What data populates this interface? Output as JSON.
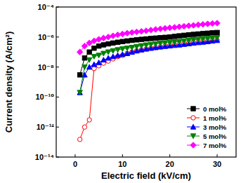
{
  "chart_data": {
    "type": "line",
    "x_label": "Electric field (kV/cm)",
    "y_label": "Current density (A/cm²)",
    "log": "y",
    "grid": false,
    "legend": "lower right",
    "xlim": [
      -4,
      34
    ],
    "xticks": [
      0,
      10,
      20,
      30
    ],
    "ylim": [
      1e-14,
      0.0001
    ],
    "yticks": [
      {
        "value": 1e-14,
        "label": "10⁻¹⁴"
      },
      {
        "value": 1e-12,
        "label": "10⁻¹²"
      },
      {
        "value": 1e-10,
        "label": "10⁻¹⁰"
      },
      {
        "value": 1e-08,
        "label": "10⁻⁸"
      },
      {
        "value": 1e-06,
        "label": "10⁻⁶"
      },
      {
        "value": 0.0001,
        "label": "10⁻⁴"
      }
    ],
    "x": [
      1,
      2,
      3,
      4,
      5,
      6,
      7,
      8,
      9,
      10,
      11,
      12,
      13,
      14,
      15,
      16,
      17,
      18,
      19,
      20,
      21,
      22,
      23,
      24,
      25,
      26,
      27,
      28,
      29,
      30
    ],
    "series": [
      {
        "name": "0 mol%",
        "color": "#000000",
        "marker": "square",
        "line_style": "solid",
        "values": [
          3e-09,
          4e-08,
          1e-07,
          1.8e-07,
          2.5e-07,
          3e-07,
          3.5e-07,
          4e-07,
          4.5e-07,
          5e-07,
          5.5e-07,
          6e-07,
          6.5e-07,
          7e-07,
          7.5e-07,
          8e-07,
          8.5e-07,
          9e-07,
          9.5e-07,
          1e-06,
          1.1e-06,
          1.2e-06,
          1.3e-06,
          1.4e-06,
          1.5e-06,
          1.6e-06,
          1.7e-06,
          1.8e-06,
          1.9e-06,
          2e-06
        ]
      },
      {
        "name": "1 mol%",
        "color": "#ff0000",
        "marker": "circle",
        "line_style": "solid",
        "values": [
          1.5e-13,
          1e-12,
          3e-12,
          8e-09,
          1.2e-08,
          1.8e-08,
          2.5e-08,
          3.5e-08,
          5e-08,
          6e-08,
          8e-08,
          1e-07,
          1.2e-07,
          1.4e-07,
          1.6e-07,
          1.8e-07,
          2e-07,
          2.2e-07,
          2.5e-07,
          2.8e-07,
          3e-07,
          3.3e-07,
          3.6e-07,
          4e-07,
          4.3e-07,
          4.6e-07,
          5e-07,
          5.3e-07,
          5.7e-07,
          6e-07
        ]
      },
      {
        "name": "3 mol%",
        "color": "#0000ff",
        "marker": "triangle",
        "line_style": "solid",
        "values": [
          2e-10,
          3e-09,
          1e-08,
          1.5e-08,
          2e-08,
          3e-08,
          4e-08,
          5e-08,
          6e-08,
          7e-08,
          8e-08,
          1e-07,
          1.2e-07,
          1.4e-07,
          1.6e-07,
          1.8e-07,
          2e-07,
          2.2e-07,
          2.4e-07,
          2.6e-07,
          2.8e-07,
          3e-07,
          3.3e-07,
          3.6e-07,
          4e-07,
          4.3e-07,
          4.6e-07,
          5e-07,
          5.5e-07,
          6e-07
        ]
      },
      {
        "name": "5 mol%",
        "color": "#008000",
        "marker": "triangle-down",
        "line_style": "solid",
        "values": [
          2e-10,
          1e-08,
          3e-08,
          5e-08,
          6e-08,
          8e-08,
          1e-07,
          1.2e-07,
          1.4e-07,
          1.6e-07,
          1.8e-07,
          2e-07,
          2.3e-07,
          2.6e-07,
          2.9e-07,
          3.2e-07,
          3.5e-07,
          3.8e-07,
          4.1e-07,
          4.4e-07,
          4.7e-07,
          5e-07,
          5.5e-07,
          6e-07,
          6.5e-07,
          7e-07,
          7.5e-07,
          8e-07,
          8.5e-07,
          9e-07
        ]
      },
      {
        "name": "7 mol%",
        "color": "#ff00ff",
        "marker": "diamond",
        "line_style": "solid",
        "values": [
          1e-07,
          2.5e-07,
          4e-07,
          5.5e-07,
          7e-07,
          8.5e-07,
          1e-06,
          1.2e-06,
          1.4e-06,
          1.6e-06,
          1.8e-06,
          2e-06,
          2.2e-06,
          2.4e-06,
          2.6e-06,
          2.9e-06,
          3.2e-06,
          3.5e-06,
          3.8e-06,
          4.1e-06,
          4.4e-06,
          4.8e-06,
          5.2e-06,
          5.6e-06,
          6e-06,
          6.5e-06,
          7e-06,
          7.5e-06,
          8e-06,
          8.5e-06
        ]
      }
    ]
  }
}
